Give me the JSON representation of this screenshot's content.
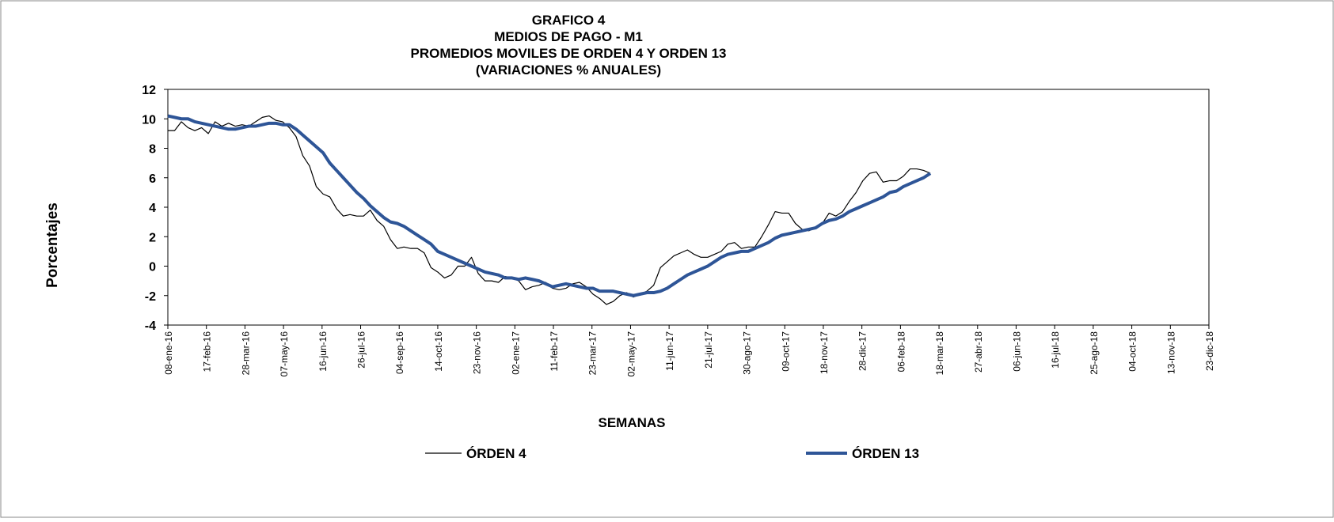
{
  "chart_data": {
    "type": "line",
    "title_lines": [
      "GRAFICO  4",
      "MEDIOS  DE PAGO - M1",
      "PROMEDIOS  MOVILES DE ORDEN  4 Y ORDEN  13",
      "(VARIACIONES   % ANUALES)"
    ],
    "y_label": "Porcentajes",
    "x_label": "SEMANAS",
    "x": [
      "2016-01-08",
      "2016-01-15",
      "2016-01-22",
      "2016-01-29",
      "2016-02-05",
      "2016-02-12",
      "2016-02-19",
      "2016-02-26",
      "2016-03-04",
      "2016-03-11",
      "2016-03-18",
      "2016-03-25",
      "2016-04-01",
      "2016-04-08",
      "2016-04-15",
      "2016-04-22",
      "2016-04-29",
      "2016-05-06",
      "2016-05-13",
      "2016-05-20",
      "2016-05-27",
      "2016-06-03",
      "2016-06-10",
      "2016-06-17",
      "2016-06-24",
      "2016-07-01",
      "2016-07-08",
      "2016-07-15",
      "2016-07-22",
      "2016-07-29",
      "2016-08-05",
      "2016-08-12",
      "2016-08-19",
      "2016-08-26",
      "2016-09-02",
      "2016-09-09",
      "2016-09-16",
      "2016-09-23",
      "2016-09-30",
      "2016-10-07",
      "2016-10-14",
      "2016-10-21",
      "2016-10-28",
      "2016-11-04",
      "2016-11-11",
      "2016-11-18",
      "2016-11-25",
      "2016-12-02",
      "2016-12-09",
      "2016-12-16",
      "2016-12-23",
      "2016-12-30",
      "2017-01-06",
      "2017-01-13",
      "2017-01-20",
      "2017-01-27",
      "2017-02-03",
      "2017-02-10",
      "2017-02-17",
      "2017-02-24",
      "2017-03-03",
      "2017-03-10",
      "2017-03-17",
      "2017-03-24",
      "2017-03-31",
      "2017-04-07",
      "2017-04-14",
      "2017-04-21",
      "2017-04-28",
      "2017-05-05",
      "2017-05-12",
      "2017-05-19",
      "2017-05-26",
      "2017-06-02",
      "2017-06-09",
      "2017-06-16",
      "2017-06-23",
      "2017-06-30",
      "2017-07-07",
      "2017-07-14",
      "2017-07-21",
      "2017-07-28",
      "2017-08-04",
      "2017-08-11",
      "2017-08-18",
      "2017-08-25",
      "2017-09-01",
      "2017-09-08",
      "2017-09-15",
      "2017-09-22",
      "2017-09-29",
      "2017-10-06",
      "2017-10-13",
      "2017-10-20",
      "2017-10-27",
      "2017-11-03",
      "2017-11-10",
      "2017-11-17",
      "2017-11-24",
      "2017-12-01",
      "2017-12-08",
      "2017-12-15",
      "2017-12-22",
      "2017-12-29",
      "2018-01-05",
      "2018-01-12",
      "2018-01-19",
      "2018-01-26",
      "2018-02-02",
      "2018-02-09",
      "2018-02-16",
      "2018-02-23",
      "2018-03-02",
      "2018-03-09"
    ],
    "series": [
      {
        "name": "ÓRDEN 4",
        "color": "#000000",
        "width": 1.2,
        "values": [
          9.2,
          9.2,
          9.8,
          9.4,
          9.2,
          9.4,
          9.0,
          9.8,
          9.5,
          9.7,
          9.5,
          9.6,
          9.5,
          9.8,
          10.1,
          10.2,
          9.9,
          9.8,
          9.4,
          8.8,
          7.5,
          6.8,
          5.4,
          4.9,
          4.7,
          3.9,
          3.4,
          3.5,
          3.4,
          3.4,
          3.8,
          3.1,
          2.7,
          1.8,
          1.2,
          1.3,
          1.2,
          1.2,
          0.9,
          -0.1,
          -0.4,
          -0.8,
          -0.6,
          0.0,
          0.0,
          0.6,
          -0.5,
          -1.0,
          -1.0,
          -1.1,
          -0.7,
          -0.8,
          -1.0,
          -1.6,
          -1.4,
          -1.3,
          -1.1,
          -1.5,
          -1.6,
          -1.5,
          -1.2,
          -1.1,
          -1.4,
          -1.9,
          -2.2,
          -2.6,
          -2.4,
          -2.0,
          -1.8,
          -2.1,
          -1.9,
          -1.7,
          -1.3,
          -0.1,
          0.3,
          0.7,
          0.9,
          1.1,
          0.8,
          0.6,
          0.6,
          0.8,
          1.0,
          1.5,
          1.6,
          1.2,
          1.3,
          1.3,
          2.0,
          2.8,
          3.7,
          3.6,
          3.6,
          2.9,
          2.5,
          2.4,
          2.6,
          2.9,
          3.6,
          3.4,
          3.7,
          4.4,
          5.0,
          5.8,
          6.3,
          6.4,
          5.7,
          5.8,
          5.8,
          6.1,
          6.6,
          6.6,
          6.5,
          6.3
        ]
      },
      {
        "name": "ÓRDEN 13",
        "color": "#2e5597",
        "width": 4,
        "values": [
          10.2,
          10.1,
          10.0,
          10.0,
          9.8,
          9.7,
          9.6,
          9.5,
          9.4,
          9.3,
          9.3,
          9.4,
          9.5,
          9.5,
          9.6,
          9.7,
          9.7,
          9.6,
          9.6,
          9.3,
          8.9,
          8.5,
          8.1,
          7.7,
          7.0,
          6.5,
          6.0,
          5.5,
          5.0,
          4.6,
          4.1,
          3.7,
          3.3,
          3.0,
          2.9,
          2.7,
          2.4,
          2.1,
          1.8,
          1.5,
          1.0,
          0.8,
          0.6,
          0.4,
          0.2,
          0.0,
          -0.2,
          -0.4,
          -0.5,
          -0.6,
          -0.8,
          -0.8,
          -0.9,
          -0.8,
          -0.9,
          -1.0,
          -1.2,
          -1.4,
          -1.3,
          -1.2,
          -1.3,
          -1.4,
          -1.5,
          -1.5,
          -1.7,
          -1.7,
          -1.7,
          -1.8,
          -1.9,
          -2.0,
          -1.9,
          -1.8,
          -1.8,
          -1.7,
          -1.5,
          -1.2,
          -0.9,
          -0.6,
          -0.4,
          -0.2,
          0.0,
          0.3,
          0.6,
          0.8,
          0.9,
          1.0,
          1.0,
          1.2,
          1.4,
          1.6,
          1.9,
          2.1,
          2.2,
          2.3,
          2.4,
          2.5,
          2.6,
          2.9,
          3.1,
          3.2,
          3.4,
          3.7,
          3.9,
          4.1,
          4.3,
          4.5,
          4.7,
          5.0,
          5.1,
          5.4,
          5.6,
          5.8,
          6.0,
          6.3
        ]
      }
    ],
    "ylim": [
      -4,
      12
    ],
    "yticks": [
      -4,
      -2,
      0,
      2,
      4,
      6,
      8,
      10,
      12
    ],
    "xlim": [
      "2016-01-08",
      "2018-12-23"
    ],
    "xticks": [
      {
        "value": "2016-01-08",
        "label": "08-ene-16"
      },
      {
        "value": "2016-02-17",
        "label": "17-feb-16"
      },
      {
        "value": "2016-03-28",
        "label": "28-mar-16"
      },
      {
        "value": "2016-05-07",
        "label": "07-may-16"
      },
      {
        "value": "2016-06-16",
        "label": "16-jun-16"
      },
      {
        "value": "2016-07-26",
        "label": "26-jul-16"
      },
      {
        "value": "2016-09-04",
        "label": "04-sep-16"
      },
      {
        "value": "2016-10-14",
        "label": "14-oct-16"
      },
      {
        "value": "2016-11-23",
        "label": "23-nov-16"
      },
      {
        "value": "2017-01-02",
        "label": "02-ene-17"
      },
      {
        "value": "2017-02-11",
        "label": "11-feb-17"
      },
      {
        "value": "2017-03-23",
        "label": "23-mar-17"
      },
      {
        "value": "2017-05-02",
        "label": "02-may-17"
      },
      {
        "value": "2017-06-11",
        "label": "11-jun-17"
      },
      {
        "value": "2017-07-21",
        "label": "21-jul-17"
      },
      {
        "value": "2017-08-30",
        "label": "30-ago-17"
      },
      {
        "value": "2017-10-09",
        "label": "09-oct-17"
      },
      {
        "value": "2017-11-18",
        "label": "18-nov-17"
      },
      {
        "value": "2017-12-28",
        "label": "28-dic-17"
      },
      {
        "value": "2018-02-06",
        "label": "06-feb-18"
      },
      {
        "value": "2018-03-18",
        "label": "18-mar-18"
      },
      {
        "value": "2018-04-27",
        "label": "27-abr-18"
      },
      {
        "value": "2018-06-06",
        "label": "06-jun-18"
      },
      {
        "value": "2018-07-16",
        "label": "16-jul-18"
      },
      {
        "value": "2018-08-25",
        "label": "25-ago-18"
      },
      {
        "value": "2018-10-04",
        "label": "04-oct-18"
      },
      {
        "value": "2018-11-13",
        "label": "13-nov-18"
      },
      {
        "value": "2018-12-23",
        "label": "23-dic-18"
      }
    ],
    "grid": false
  }
}
